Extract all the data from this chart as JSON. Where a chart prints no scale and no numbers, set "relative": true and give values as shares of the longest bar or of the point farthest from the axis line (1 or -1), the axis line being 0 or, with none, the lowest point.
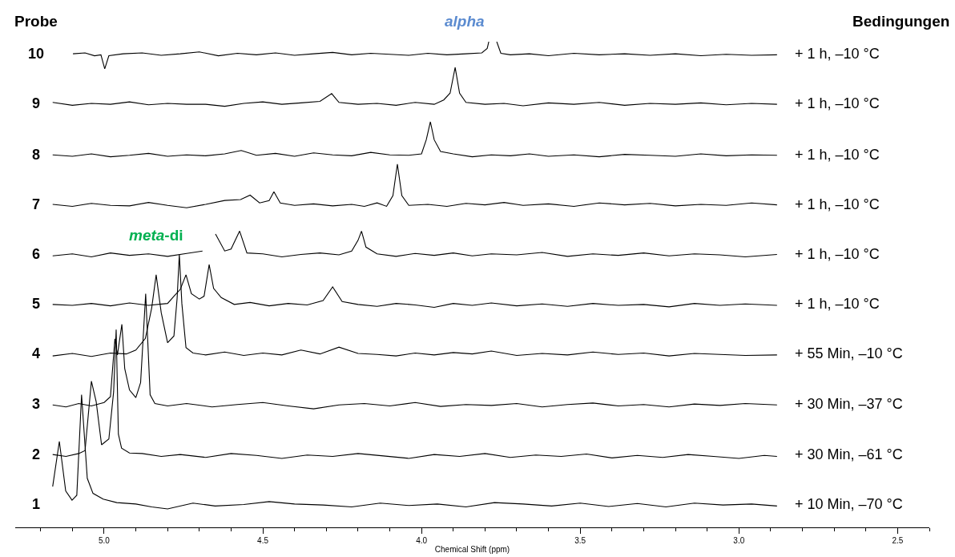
{
  "chart_data": {
    "type": "line",
    "relative": true,
    "xlabel": "Chemical Shift (ppm)",
    "xlim": [
      5.28,
      2.4
    ],
    "xticks": [
      {
        "value": 5.2,
        "label": null
      },
      {
        "value": 5.1,
        "label": null
      },
      {
        "value": 5.0,
        "label": "5.0"
      },
      {
        "value": 4.9,
        "label": null
      },
      {
        "value": 4.8,
        "label": null
      },
      {
        "value": 4.7,
        "label": null
      },
      {
        "value": 4.6,
        "label": null
      },
      {
        "value": 4.5,
        "label": "4.5"
      },
      {
        "value": 4.4,
        "label": null
      },
      {
        "value": 4.3,
        "label": null
      },
      {
        "value": 4.2,
        "label": null
      },
      {
        "value": 4.1,
        "label": null
      },
      {
        "value": 4.0,
        "label": "4.0"
      },
      {
        "value": 3.9,
        "label": null
      },
      {
        "value": 3.8,
        "label": null
      },
      {
        "value": 3.7,
        "label": null
      },
      {
        "value": 3.6,
        "label": null
      },
      {
        "value": 3.5,
        "label": "3.5"
      },
      {
        "value": 3.4,
        "label": null
      },
      {
        "value": 3.3,
        "label": null
      },
      {
        "value": 3.2,
        "label": null
      },
      {
        "value": 3.1,
        "label": null
      },
      {
        "value": 3.0,
        "label": "3.0"
      },
      {
        "value": 2.9,
        "label": null
      },
      {
        "value": 2.8,
        "label": null
      },
      {
        "value": 2.7,
        "label": null
      },
      {
        "value": 2.6,
        "label": null
      },
      {
        "value": 2.5,
        "label": "2.5"
      },
      {
        "value": 2.4,
        "label": null
      }
    ],
    "tick_labels": "x",
    "legend": false,
    "series": [
      {
        "name": "1",
        "color": "#000000",
        "x": [
          5.162,
          5.141,
          5.121,
          5.101,
          5.086,
          5.071,
          5.053,
          5.035,
          5.003,
          4.96,
          4.9,
          4.85,
          4.8,
          4.72,
          4.65,
          4.56,
          4.48,
          4.4,
          4.31,
          4.22,
          4.13,
          4.04,
          3.95,
          3.86,
          3.77,
          3.68,
          3.59,
          3.5,
          3.41,
          3.32,
          3.23,
          3.14,
          3.05,
          2.96,
          2.88
        ],
        "values": [
          0.084,
          0.177,
          0.075,
          0.056,
          0.066,
          0.273,
          0.101,
          0.07,
          0.058,
          0.051,
          0.048,
          0.042,
          0.038,
          0.05,
          0.044,
          0.047,
          0.053,
          0.048,
          0.046,
          0.042,
          0.05,
          0.045,
          0.048,
          0.042,
          0.051,
          0.048,
          0.044,
          0.05,
          0.043,
          0.049,
          0.042,
          0.05,
          0.046,
          0.048,
          0.044
        ]
      },
      {
        "name": "2",
        "color": "#000000",
        "x": [
          5.162,
          5.12,
          5.08,
          5.06,
          5.05,
          5.04,
          5.025,
          5.008,
          4.985,
          4.97,
          4.962,
          4.955,
          4.945,
          4.92,
          4.88,
          4.82,
          4.76,
          4.68,
          4.6,
          4.52,
          4.44,
          4.36,
          4.28,
          4.2,
          4.12,
          4.04,
          3.96,
          3.88,
          3.8,
          3.72,
          3.64,
          3.56,
          3.48,
          3.4,
          3.32,
          3.24,
          3.16,
          3.08,
          3.0,
          2.92,
          2.88
        ],
        "values": [
          0.15,
          0.146,
          0.152,
          0.158,
          0.23,
          0.301,
          0.259,
          0.17,
          0.182,
          0.279,
          0.407,
          0.192,
          0.163,
          0.153,
          0.152,
          0.146,
          0.15,
          0.144,
          0.152,
          0.148,
          0.142,
          0.149,
          0.146,
          0.152,
          0.147,
          0.142,
          0.15,
          0.146,
          0.152,
          0.144,
          0.149,
          0.146,
          0.151,
          0.143,
          0.148,
          0.144,
          0.15,
          0.146,
          0.142,
          0.148,
          0.146
        ]
      },
      {
        "name": "3",
        "color": "#000000",
        "x": [
          5.162,
          5.12,
          5.08,
          5.04,
          5.0,
          4.98,
          4.966,
          4.958,
          4.944,
          4.935,
          4.92,
          4.9,
          4.885,
          4.869,
          4.855,
          4.84,
          4.8,
          4.74,
          4.66,
          4.58,
          4.5,
          4.42,
          4.34,
          4.26,
          4.18,
          4.1,
          4.02,
          3.94,
          3.86,
          3.78,
          3.7,
          3.62,
          3.54,
          3.46,
          3.38,
          3.3,
          3.22,
          3.14,
          3.06,
          2.98,
          2.88
        ],
        "values": [
          0.252,
          0.248,
          0.255,
          0.25,
          0.257,
          0.269,
          0.388,
          0.355,
          0.418,
          0.327,
          0.283,
          0.267,
          0.298,
          0.481,
          0.273,
          0.255,
          0.25,
          0.255,
          0.248,
          0.253,
          0.257,
          0.25,
          0.244,
          0.252,
          0.255,
          0.25,
          0.257,
          0.249,
          0.253,
          0.251,
          0.255,
          0.248,
          0.253,
          0.256,
          0.25,
          0.253,
          0.248,
          0.254,
          0.251,
          0.255,
          0.252
        ]
      },
      {
        "name": "4",
        "color": "#000000",
        "x": [
          5.162,
          5.1,
          5.04,
          4.98,
          4.93,
          4.9,
          4.87,
          4.85,
          4.836,
          4.82,
          4.8,
          4.78,
          4.77,
          4.763,
          4.755,
          4.742,
          4.72,
          4.68,
          4.62,
          4.56,
          4.5,
          4.44,
          4.38,
          4.32,
          4.26,
          4.2,
          4.14,
          4.08,
          4.02,
          3.96,
          3.9,
          3.84,
          3.78,
          3.7,
          3.62,
          3.54,
          3.46,
          3.38,
          3.3,
          3.22,
          3.14,
          3.06,
          2.98,
          2.88
        ],
        "values": [
          0.353,
          0.358,
          0.352,
          0.359,
          0.357,
          0.365,
          0.389,
          0.452,
          0.52,
          0.442,
          0.38,
          0.394,
          0.471,
          0.562,
          0.461,
          0.37,
          0.359,
          0.355,
          0.361,
          0.354,
          0.359,
          0.355,
          0.365,
          0.357,
          0.371,
          0.358,
          0.356,
          0.353,
          0.359,
          0.355,
          0.36,
          0.357,
          0.363,
          0.354,
          0.358,
          0.355,
          0.361,
          0.356,
          0.359,
          0.353,
          0.358,
          0.356,
          0.354,
          0.355
        ]
      },
      {
        "name": "5",
        "color": "#000000",
        "x": [
          5.162,
          5.1,
          5.04,
          4.98,
          4.92,
          4.86,
          4.8,
          4.78,
          4.76,
          4.742,
          4.725,
          4.7,
          4.685,
          4.669,
          4.655,
          4.631,
          4.59,
          4.54,
          4.48,
          4.42,
          4.36,
          4.31,
          4.28,
          4.25,
          4.2,
          4.14,
          4.08,
          4.02,
          3.96,
          3.9,
          3.84,
          3.78,
          3.7,
          3.62,
          3.54,
          3.46,
          3.38,
          3.3,
          3.22,
          3.14,
          3.06,
          2.98,
          2.88
        ],
        "values": [
          0.459,
          0.457,
          0.461,
          0.456,
          0.462,
          0.457,
          0.461,
          0.476,
          0.49,
          0.52,
          0.481,
          0.47,
          0.476,
          0.541,
          0.492,
          0.473,
          0.459,
          0.463,
          0.456,
          0.461,
          0.458,
          0.467,
          0.495,
          0.465,
          0.459,
          0.455,
          0.461,
          0.458,
          0.453,
          0.461,
          0.457,
          0.462,
          0.456,
          0.46,
          0.455,
          0.461,
          0.457,
          0.459,
          0.454,
          0.461,
          0.457,
          0.46,
          0.457
        ]
      },
      {
        "name": "6",
        "color": "#000000",
        "x": [
          5.162,
          5.1,
          5.04,
          4.98,
          4.92,
          4.86,
          4.8,
          4.74,
          4.69,
          4.669,
          4.649,
          4.62,
          4.6,
          4.573,
          4.55,
          4.5,
          4.44,
          4.38,
          4.32,
          4.26,
          4.22,
          4.2,
          4.189,
          4.175,
          4.14,
          4.08,
          4.02,
          3.96,
          3.9,
          3.84,
          3.78,
          3.7,
          3.62,
          3.54,
          3.46,
          3.38,
          3.3,
          3.22,
          3.14,
          3.06,
          2.98,
          2.88
        ],
        "values": [
          0.559,
          0.563,
          0.557,
          0.565,
          0.56,
          0.563,
          0.558,
          0.564,
          0.569,
          null,
          0.604,
          0.569,
          0.573,
          0.61,
          0.565,
          0.563,
          0.557,
          0.562,
          0.565,
          0.561,
          0.569,
          0.591,
          0.61,
          0.577,
          0.563,
          0.558,
          0.564,
          0.56,
          0.565,
          0.559,
          0.563,
          0.561,
          0.566,
          0.558,
          0.563,
          0.56,
          0.565,
          0.559,
          0.563,
          0.561,
          0.557,
          0.562
        ]
      },
      {
        "name": "7",
        "color": "#000000",
        "x": [
          5.162,
          5.1,
          5.04,
          4.98,
          4.92,
          4.86,
          4.8,
          4.74,
          4.68,
          4.62,
          4.57,
          4.54,
          4.51,
          4.48,
          4.465,
          4.445,
          4.4,
          4.34,
          4.28,
          4.22,
          4.18,
          4.14,
          4.11,
          4.09,
          4.076,
          4.062,
          4.04,
          3.98,
          3.92,
          3.86,
          3.8,
          3.74,
          3.68,
          3.6,
          3.52,
          3.44,
          3.36,
          3.28,
          3.2,
          3.12,
          3.04,
          2.96,
          2.88
        ],
        "values": [
          0.665,
          0.661,
          0.667,
          0.663,
          0.662,
          0.669,
          0.663,
          0.658,
          0.665,
          0.673,
          0.675,
          0.684,
          0.668,
          0.673,
          0.691,
          0.668,
          0.663,
          0.666,
          0.662,
          0.665,
          0.661,
          0.668,
          0.661,
          0.683,
          0.748,
          0.683,
          0.663,
          0.665,
          0.661,
          0.667,
          0.664,
          0.669,
          0.663,
          0.666,
          0.661,
          0.668,
          0.664,
          0.667,
          0.662,
          0.665,
          0.663,
          0.668,
          0.664
        ]
      },
      {
        "name": "8",
        "color": "#000000",
        "x": [
          5.162,
          5.1,
          5.04,
          4.98,
          4.92,
          4.86,
          4.8,
          4.74,
          4.68,
          4.62,
          4.568,
          4.52,
          4.46,
          4.4,
          4.34,
          4.28,
          4.22,
          4.16,
          4.1,
          4.04,
          4.0,
          3.985,
          3.972,
          3.96,
          3.94,
          3.9,
          3.84,
          3.78,
          3.72,
          3.66,
          3.6,
          3.52,
          3.44,
          3.36,
          3.28,
          3.2,
          3.12,
          3.04,
          2.96,
          2.88
        ],
        "values": [
          0.767,
          0.764,
          0.769,
          0.763,
          0.766,
          0.77,
          0.764,
          0.767,
          0.765,
          0.769,
          0.776,
          0.766,
          0.77,
          0.764,
          0.771,
          0.767,
          0.765,
          0.772,
          0.767,
          0.766,
          0.769,
          0.798,
          0.835,
          0.798,
          0.774,
          0.769,
          0.763,
          0.767,
          0.765,
          0.769,
          0.764,
          0.767,
          0.763,
          0.768,
          0.766,
          0.764,
          0.769,
          0.765,
          0.767,
          0.766
        ]
      },
      {
        "name": "9",
        "color": "#000000",
        "x": [
          5.162,
          5.1,
          5.04,
          4.98,
          4.92,
          4.86,
          4.8,
          4.74,
          4.68,
          4.62,
          4.56,
          4.5,
          4.44,
          4.38,
          4.32,
          4.283,
          4.26,
          4.2,
          4.14,
          4.08,
          4.02,
          3.96,
          3.93,
          3.91,
          3.894,
          3.88,
          3.86,
          3.8,
          3.74,
          3.68,
          3.6,
          3.52,
          3.44,
          3.36,
          3.28,
          3.2,
          3.12,
          3.04,
          2.96,
          2.88
        ],
        "values": [
          0.875,
          0.869,
          0.873,
          0.871,
          0.876,
          0.87,
          0.873,
          0.871,
          0.871,
          0.867,
          0.873,
          0.876,
          0.871,
          0.874,
          0.877,
          0.893,
          0.875,
          0.871,
          0.873,
          0.869,
          0.875,
          0.871,
          0.88,
          0.894,
          0.947,
          0.894,
          0.875,
          0.871,
          0.873,
          0.868,
          0.874,
          0.871,
          0.875,
          0.869,
          0.873,
          0.871,
          0.874,
          0.87,
          0.873,
          0.871
        ]
      },
      {
        "name": "10",
        "color": "#000000",
        "x": [
          5.098,
          5.06,
          5.03,
          5.01,
          4.998,
          4.985,
          4.94,
          4.88,
          4.82,
          4.76,
          4.7,
          4.64,
          4.58,
          4.52,
          4.46,
          4.4,
          4.34,
          4.28,
          4.22,
          4.16,
          4.1,
          4.04,
          3.98,
          3.92,
          3.86,
          3.81,
          3.793,
          3.788,
          3.775,
          3.763,
          3.75,
          3.72,
          3.66,
          3.6,
          3.52,
          3.44,
          3.36,
          3.28,
          3.2,
          3.12,
          3.04,
          2.96,
          2.88
        ],
        "values": [
          0.975,
          0.977,
          0.971,
          0.973,
          0.944,
          0.971,
          0.975,
          0.977,
          0.972,
          0.975,
          0.979,
          0.971,
          0.976,
          0.973,
          0.977,
          0.972,
          0.975,
          0.978,
          0.973,
          0.976,
          0.974,
          0.972,
          0.976,
          0.973,
          0.975,
          0.977,
          0.986,
          1.0,
          null,
          1.0,
          0.976,
          0.973,
          0.975,
          0.971,
          0.976,
          0.973,
          0.975,
          0.972,
          0.975,
          0.971,
          0.974,
          0.972,
          0.973
        ]
      }
    ],
    "annotations": [
      "Probe",
      "Bedingungen",
      "alpha",
      "meta-di",
      "+ 10 Min, –70 °C",
      "+ 30 Min, –61 °C",
      "+ 30 Min, –37 °C",
      "+ 55 Min, –10 °C",
      "+ 1 h, –10 °C",
      "+ 1 h, –10 °C",
      "+ 1 h, –10 °C",
      "+ 1 h, –10 °C",
      "+ 1 h, –10 °C",
      "+ 1 h, –10 °C"
    ]
  }
}
